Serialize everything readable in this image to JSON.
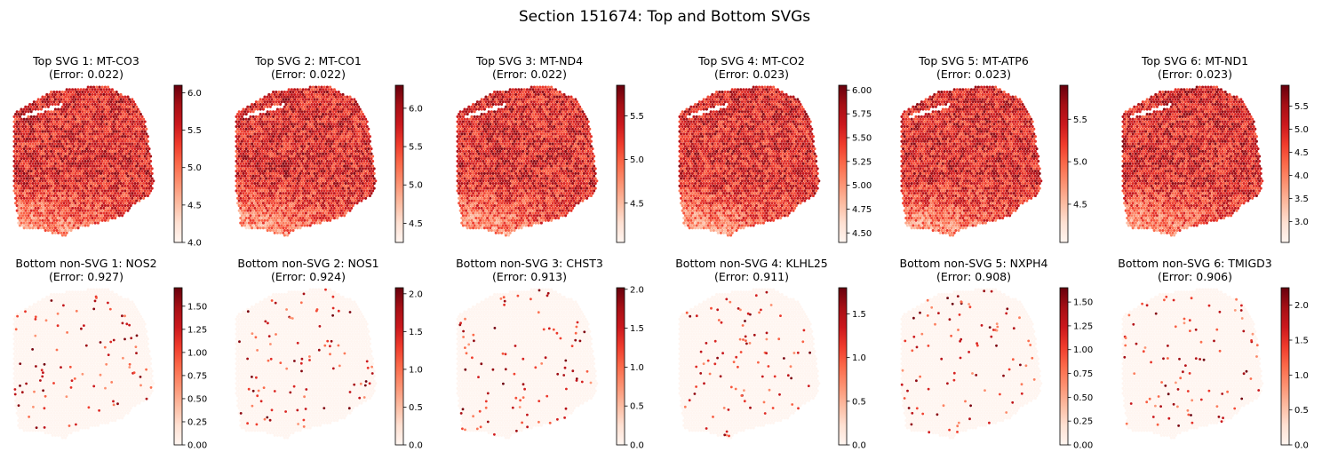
{
  "title": "Section 151674: Top and Bottom SVGs",
  "colormap": [
    "#fff5f0",
    "#fee0d2",
    "#fcbba1",
    "#fc9272",
    "#fb6a4a",
    "#ef3b2c",
    "#cb181d",
    "#a50f15",
    "#67000d"
  ],
  "chart_data": [
    {
      "type": "heatmap",
      "row": "top",
      "title": "Top SVG 1: MT-CO3",
      "subtitle": "(Error: 0.022)",
      "vmin": 4.0,
      "vmax": 6.1,
      "ticks": [
        4.0,
        4.5,
        5.0,
        5.5,
        6.0
      ],
      "tick_labels": [
        "4.0",
        "4.5",
        "5.0",
        "5.5",
        "6.0"
      ]
    },
    {
      "type": "heatmap",
      "row": "top",
      "title": "Top SVG 2: MT-CO1",
      "subtitle": "(Error: 0.022)",
      "vmin": 4.25,
      "vmax": 6.3,
      "ticks": [
        4.5,
        5.0,
        5.5,
        6.0
      ],
      "tick_labels": [
        "4.5",
        "5.0",
        "5.5",
        "6.0"
      ]
    },
    {
      "type": "heatmap",
      "row": "top",
      "title": "Top SVG 3: MT-ND4",
      "subtitle": "(Error: 0.022)",
      "vmin": 4.05,
      "vmax": 5.85,
      "ticks": [
        4.5,
        5.0,
        5.5
      ],
      "tick_labels": [
        "4.5",
        "5.0",
        "5.5"
      ]
    },
    {
      "type": "heatmap",
      "row": "top",
      "title": "Top SVG 4: MT-CO2",
      "subtitle": "(Error: 0.023)",
      "vmin": 4.4,
      "vmax": 6.05,
      "ticks": [
        4.5,
        4.75,
        5.0,
        5.25,
        5.5,
        5.75,
        6.0
      ],
      "tick_labels": [
        "4.50",
        "4.75",
        "5.00",
        "5.25",
        "5.50",
        "5.75",
        "6.00"
      ]
    },
    {
      "type": "heatmap",
      "row": "top",
      "title": "Top SVG 5: MT-ATP6",
      "subtitle": "(Error: 0.023)",
      "vmin": 4.05,
      "vmax": 5.9,
      "ticks": [
        4.5,
        5.0,
        5.5
      ],
      "tick_labels": [
        "4.5",
        "5.0",
        "5.5"
      ]
    },
    {
      "type": "heatmap",
      "row": "top",
      "title": "Top SVG 6: MT-ND1",
      "subtitle": "(Error: 0.023)",
      "vmin": 2.55,
      "vmax": 5.95,
      "ticks": [
        3.0,
        3.5,
        4.0,
        4.5,
        5.0,
        5.5
      ],
      "tick_labels": [
        "3.0",
        "3.5",
        "4.0",
        "4.5",
        "5.0",
        "5.5"
      ]
    },
    {
      "type": "heatmap",
      "row": "bottom",
      "title": "Bottom non-SVG 1: NOS2",
      "subtitle": "(Error: 0.927)",
      "vmin": 0.0,
      "vmax": 1.7,
      "ticks": [
        0.0,
        0.25,
        0.5,
        0.75,
        1.0,
        1.25,
        1.5
      ],
      "tick_labels": [
        "0.00",
        "0.25",
        "0.50",
        "0.75",
        "1.00",
        "1.25",
        "1.50"
      ]
    },
    {
      "type": "heatmap",
      "row": "bottom",
      "title": "Bottom non-SVG 2: NOS1",
      "subtitle": "(Error: 0.924)",
      "vmin": 0.0,
      "vmax": 2.08,
      "ticks": [
        0.0,
        0.5,
        1.0,
        1.5,
        2.0
      ],
      "tick_labels": [
        "0.0",
        "0.5",
        "1.0",
        "1.5",
        "2.0"
      ]
    },
    {
      "type": "heatmap",
      "row": "bottom",
      "title": "Bottom non-SVG 3: CHST3",
      "subtitle": "(Error: 0.913)",
      "vmin": 0.0,
      "vmax": 2.02,
      "ticks": [
        0.0,
        0.5,
        1.0,
        1.5,
        2.0
      ],
      "tick_labels": [
        "0.0",
        "0.5",
        "1.0",
        "1.5",
        "2.0"
      ]
    },
    {
      "type": "heatmap",
      "row": "bottom",
      "title": "Bottom non-SVG 4: KLHL25",
      "subtitle": "(Error: 0.911)",
      "vmin": 0.0,
      "vmax": 1.8,
      "ticks": [
        0.0,
        0.5,
        1.0,
        1.5
      ],
      "tick_labels": [
        "0.0",
        "0.5",
        "1.0",
        "1.5"
      ]
    },
    {
      "type": "heatmap",
      "row": "bottom",
      "title": "Bottom non-SVG 5: NXPH4",
      "subtitle": "(Error: 0.908)",
      "vmin": 0.0,
      "vmax": 1.65,
      "ticks": [
        0.0,
        0.25,
        0.5,
        0.75,
        1.0,
        1.25,
        1.5
      ],
      "tick_labels": [
        "0.00",
        "0.25",
        "0.50",
        "0.75",
        "1.00",
        "1.25",
        "1.50"
      ]
    },
    {
      "type": "heatmap",
      "row": "bottom",
      "title": "Bottom non-SVG 6: TMIGD3",
      "subtitle": "(Error: 0.906)",
      "vmin": 0.0,
      "vmax": 2.25,
      "ticks": [
        0.0,
        0.5,
        1.0,
        1.5,
        2.0
      ],
      "tick_labels": [
        "0.0",
        "0.5",
        "1.0",
        "1.5",
        "2.0"
      ]
    }
  ]
}
